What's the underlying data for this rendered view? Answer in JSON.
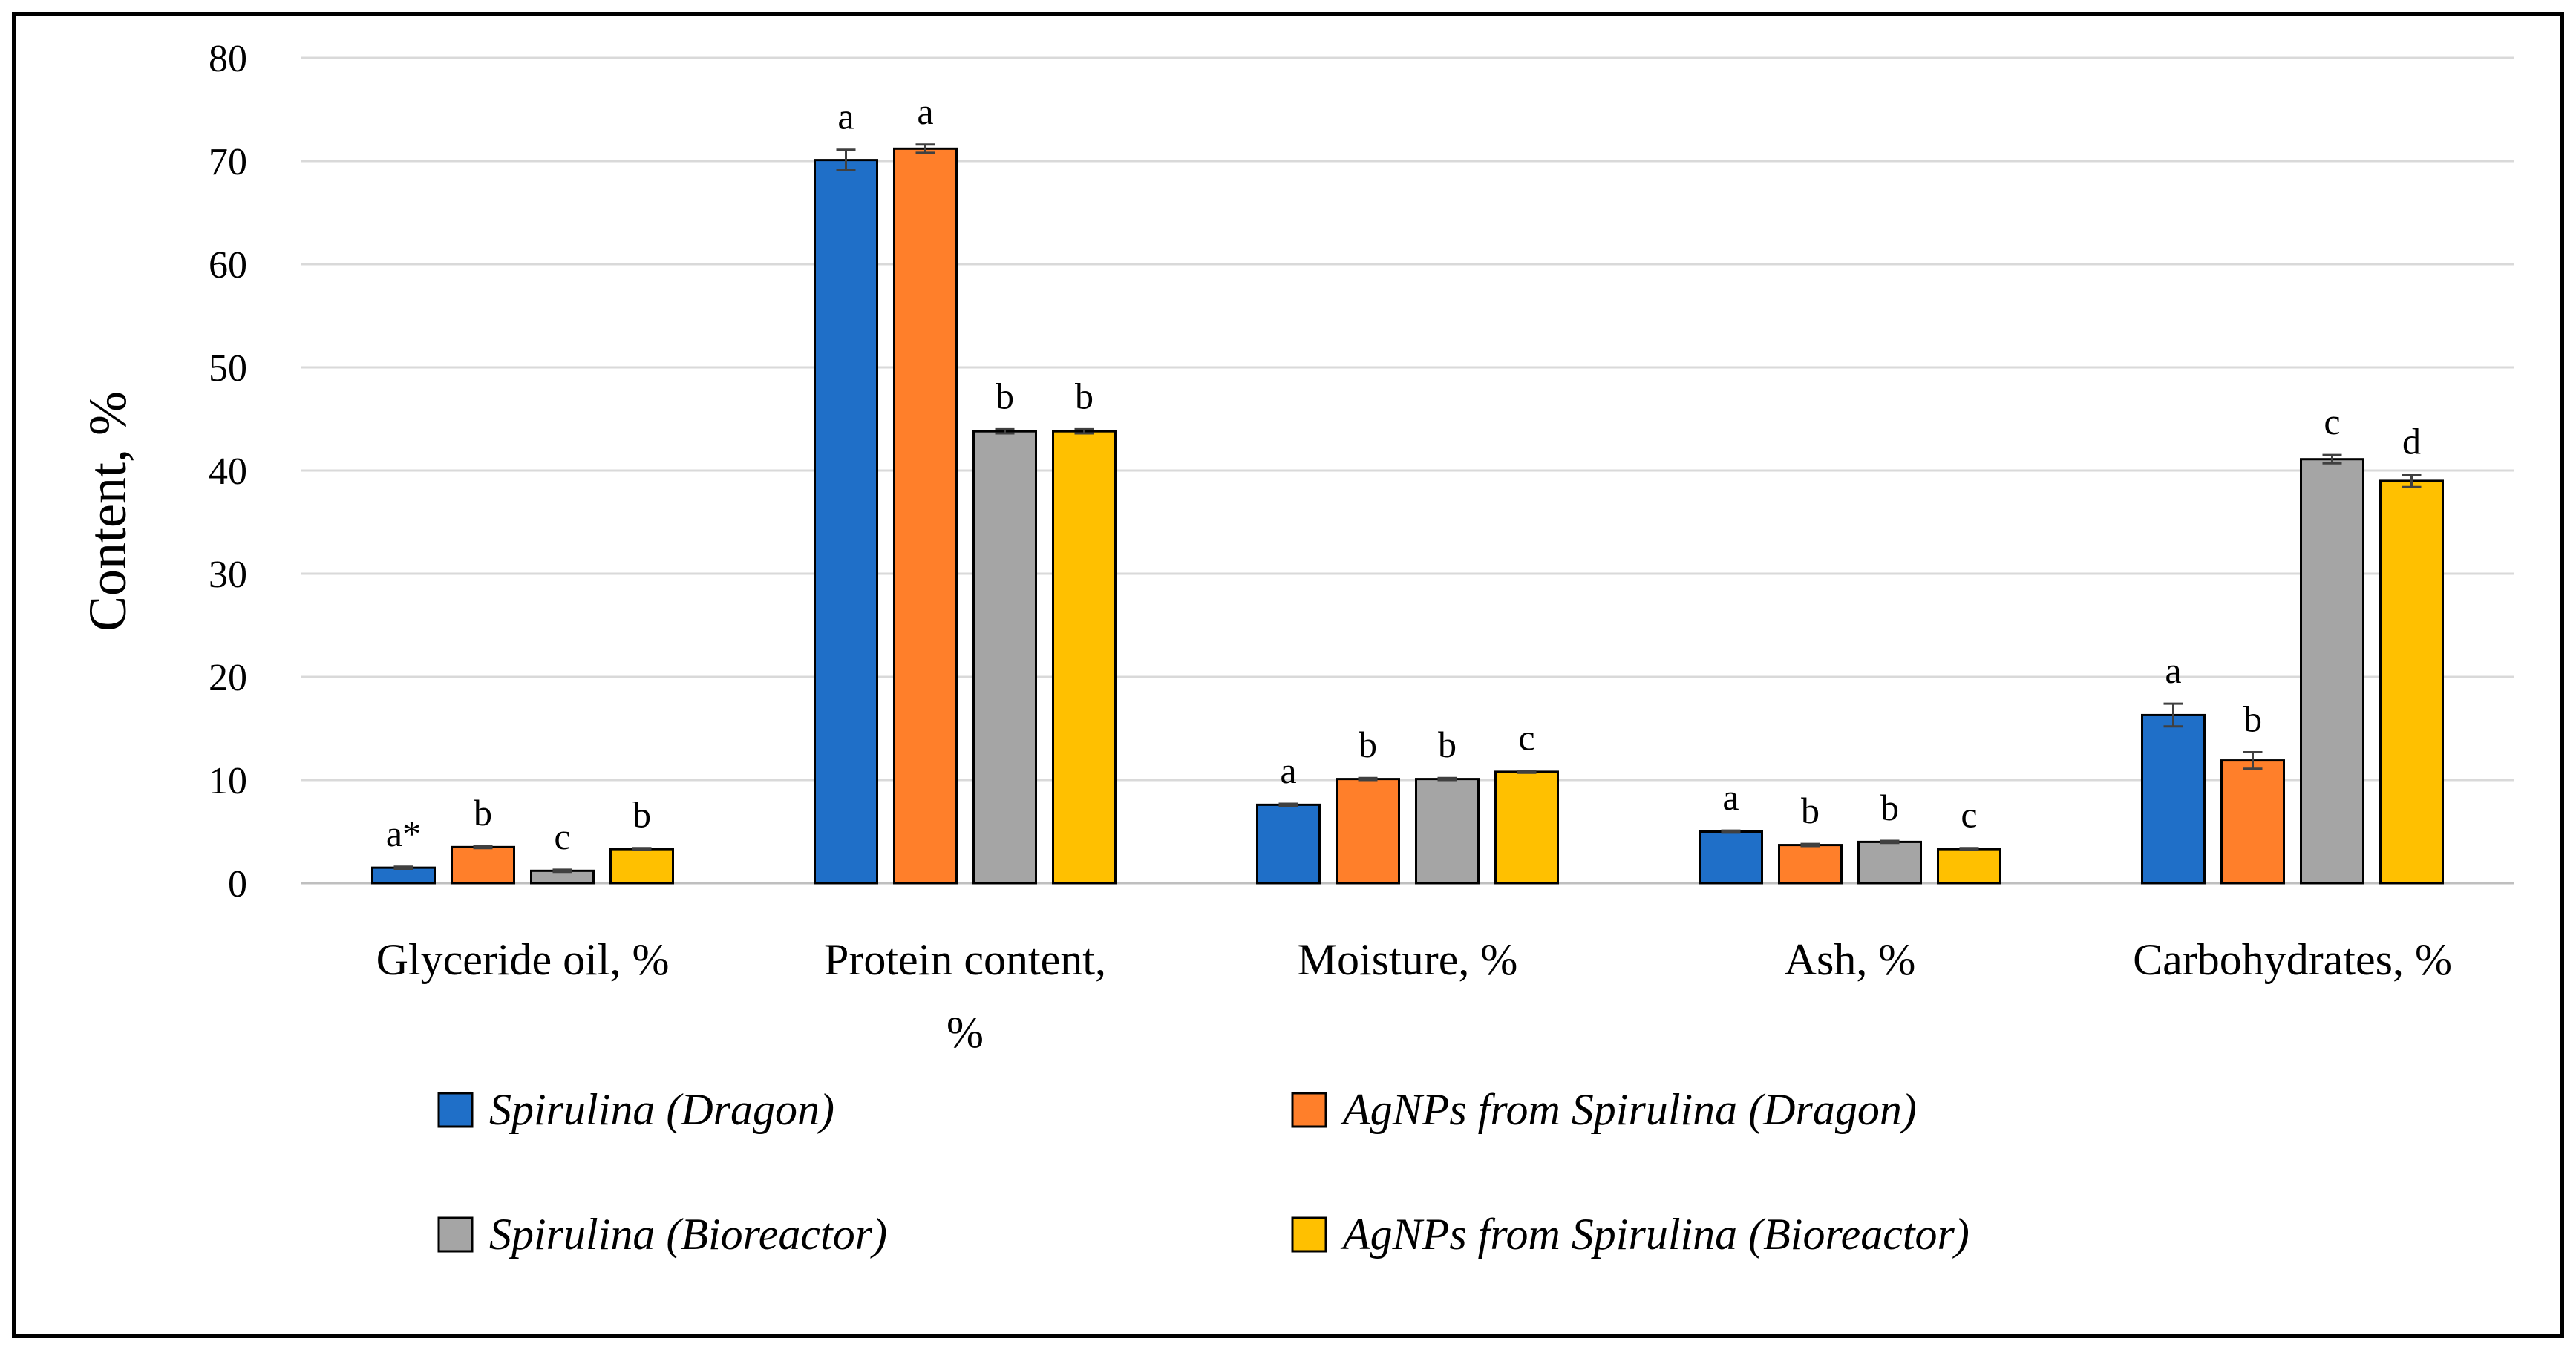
{
  "chart_data": {
    "type": "bar",
    "title": "",
    "xlabel": "",
    "ylabel": "Content, %",
    "ylim": [
      0,
      80
    ],
    "yticks": [
      0,
      10,
      20,
      30,
      40,
      50,
      60,
      70,
      80
    ],
    "grid": true,
    "legend_position": "bottom",
    "categories": [
      [
        "Glyceride oil, %"
      ],
      [
        "Protein content,",
        "%"
      ],
      [
        "Moisture, %"
      ],
      [
        "Ash, %"
      ],
      [
        "Carbohydrates, %"
      ]
    ],
    "series": [
      {
        "name": "Spirulina (Dragon)",
        "color": "#1F6FC8",
        "values": [
          1.5,
          70.1,
          7.6,
          5.0,
          16.3
        ],
        "errors": [
          0.1,
          1.0,
          0.1,
          0.1,
          1.1
        ],
        "letters": [
          "a*",
          "a",
          "a",
          "a",
          "a"
        ]
      },
      {
        "name": "AgNPs from Spirulina (Dragon)",
        "color": "#FF7F2A",
        "values": [
          3.5,
          71.2,
          10.1,
          3.7,
          11.9
        ],
        "errors": [
          0.1,
          0.4,
          0.1,
          0.1,
          0.8
        ],
        "letters": [
          "b",
          "a",
          "b",
          "b",
          "b"
        ]
      },
      {
        "name": "Spirulina (Bioreactor)",
        "color": "#A5A5A5",
        "values": [
          1.2,
          43.8,
          10.1,
          4.0,
          41.1
        ],
        "errors": [
          0.1,
          0.2,
          0.1,
          0.1,
          0.4
        ],
        "letters": [
          "c",
          "b",
          "b",
          "b",
          "c"
        ]
      },
      {
        "name": "AgNPs from Spirulina (Bioreactor)",
        "color": "#FFC000",
        "values": [
          3.3,
          43.8,
          10.8,
          3.3,
          39.0
        ],
        "errors": [
          0.1,
          0.2,
          0.1,
          0.1,
          0.6
        ],
        "letters": [
          "b",
          "b",
          "c",
          "c",
          "d"
        ]
      }
    ]
  }
}
